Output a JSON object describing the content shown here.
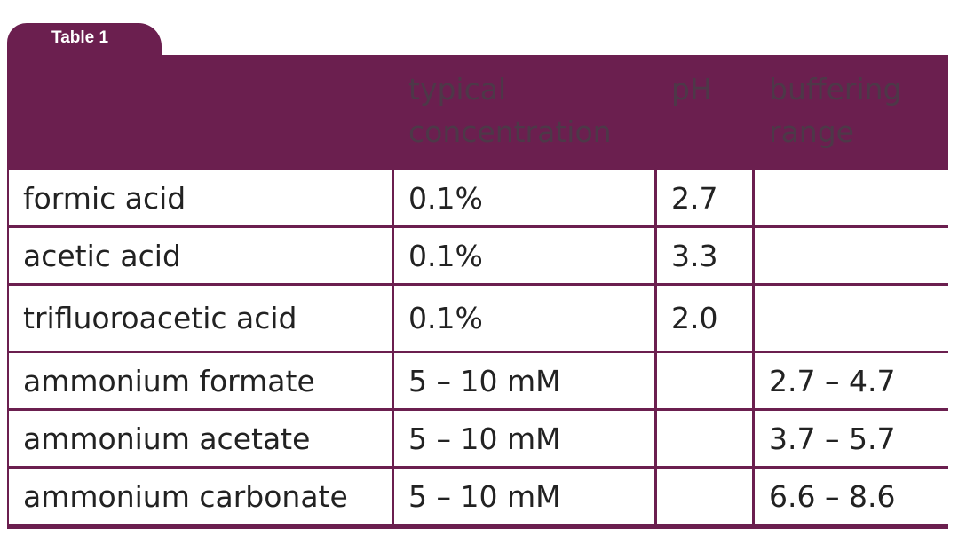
{
  "tab": "Table 1",
  "table": {
    "header": [
      null,
      "typical concentration",
      "pH",
      "buffering range"
    ],
    "rows": [
      [
        "formic acid",
        "0.1%",
        "2.7",
        null
      ],
      [
        "acetic acid",
        "0.1%",
        "3.3",
        null
      ],
      [
        "trifluoroacetic acid",
        "0.1%",
        "2.0",
        null
      ],
      [
        "ammonium formate",
        "5 – 10 mM",
        null,
        "2.7 – 4.7"
      ],
      [
        "ammonium acetate",
        "5 – 10 mM",
        null,
        "3.7 – 5.7"
      ],
      [
        "ammonium carbonate",
        "5 – 10 mM",
        null,
        "6.6 – 8.6"
      ]
    ]
  }
}
